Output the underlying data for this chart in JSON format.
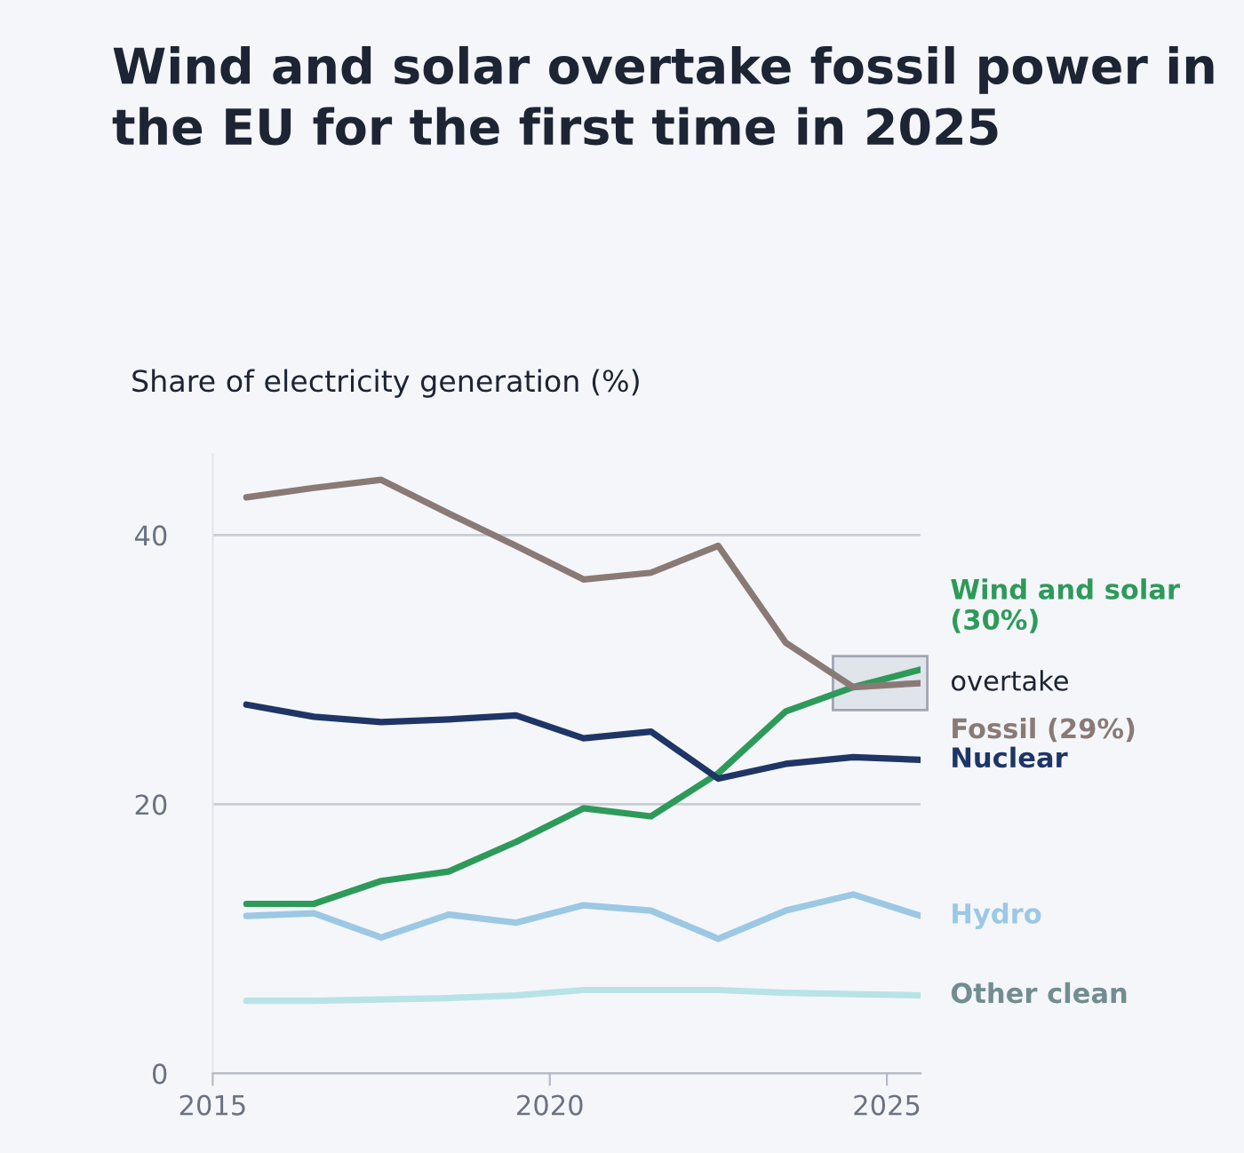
{
  "chart_data": {
    "type": "line",
    "title": "Wind and solar overtake fossil power in the EU for the first time in 2025",
    "ylabel": "Share of electricity generation (%)",
    "x": [
      2015.5,
      2016.5,
      2017.5,
      2018.5,
      2019.5,
      2020.5,
      2021.5,
      2022.5,
      2023.5,
      2024.5,
      2025.5
    ],
    "series": [
      {
        "name": "Wind and solar (30%)",
        "color": "#2e9a5a",
        "values": [
          12.6,
          12.6,
          14.3,
          15.0,
          17.2,
          19.7,
          19.1,
          22.3,
          26.9,
          28.7,
          30
        ]
      },
      {
        "name": "Fossil (29%)",
        "color": "#8a7a76",
        "values": [
          42.8,
          43.5,
          44.1,
          41.6,
          39.2,
          36.7,
          37.2,
          39.2,
          32.0,
          28.7,
          29
        ]
      },
      {
        "name": "Nuclear",
        "color": "#1f3566",
        "values": [
          27.4,
          26.5,
          26.1,
          26.3,
          26.6,
          24.9,
          25.4,
          21.9,
          23.0,
          23.5,
          23.3
        ]
      },
      {
        "name": "Hydro",
        "color": "#9cc8e4",
        "values": [
          11.7,
          11.9,
          10.1,
          11.8,
          11.2,
          12.5,
          12.1,
          10.0,
          12.1,
          13.3,
          11.7
        ]
      },
      {
        "name": "Other clean",
        "color": "#b8e3e6",
        "values": [
          5.4,
          5.4,
          5.5,
          5.6,
          5.8,
          6.2,
          6.2,
          6.2,
          6.0,
          5.9,
          5.8
        ]
      }
    ],
    "annotations": [
      {
        "text": "overtake",
        "x": 2025.5,
        "y": 29
      }
    ],
    "xlim": [
      2015,
      2025.5
    ],
    "ylim": [
      0,
      46
    ],
    "xticks": [
      2015,
      2020,
      2025
    ],
    "yticks": [
      0,
      20,
      40
    ],
    "grid": "y",
    "legend": false,
    "marker": "none",
    "line_style": "solid"
  }
}
